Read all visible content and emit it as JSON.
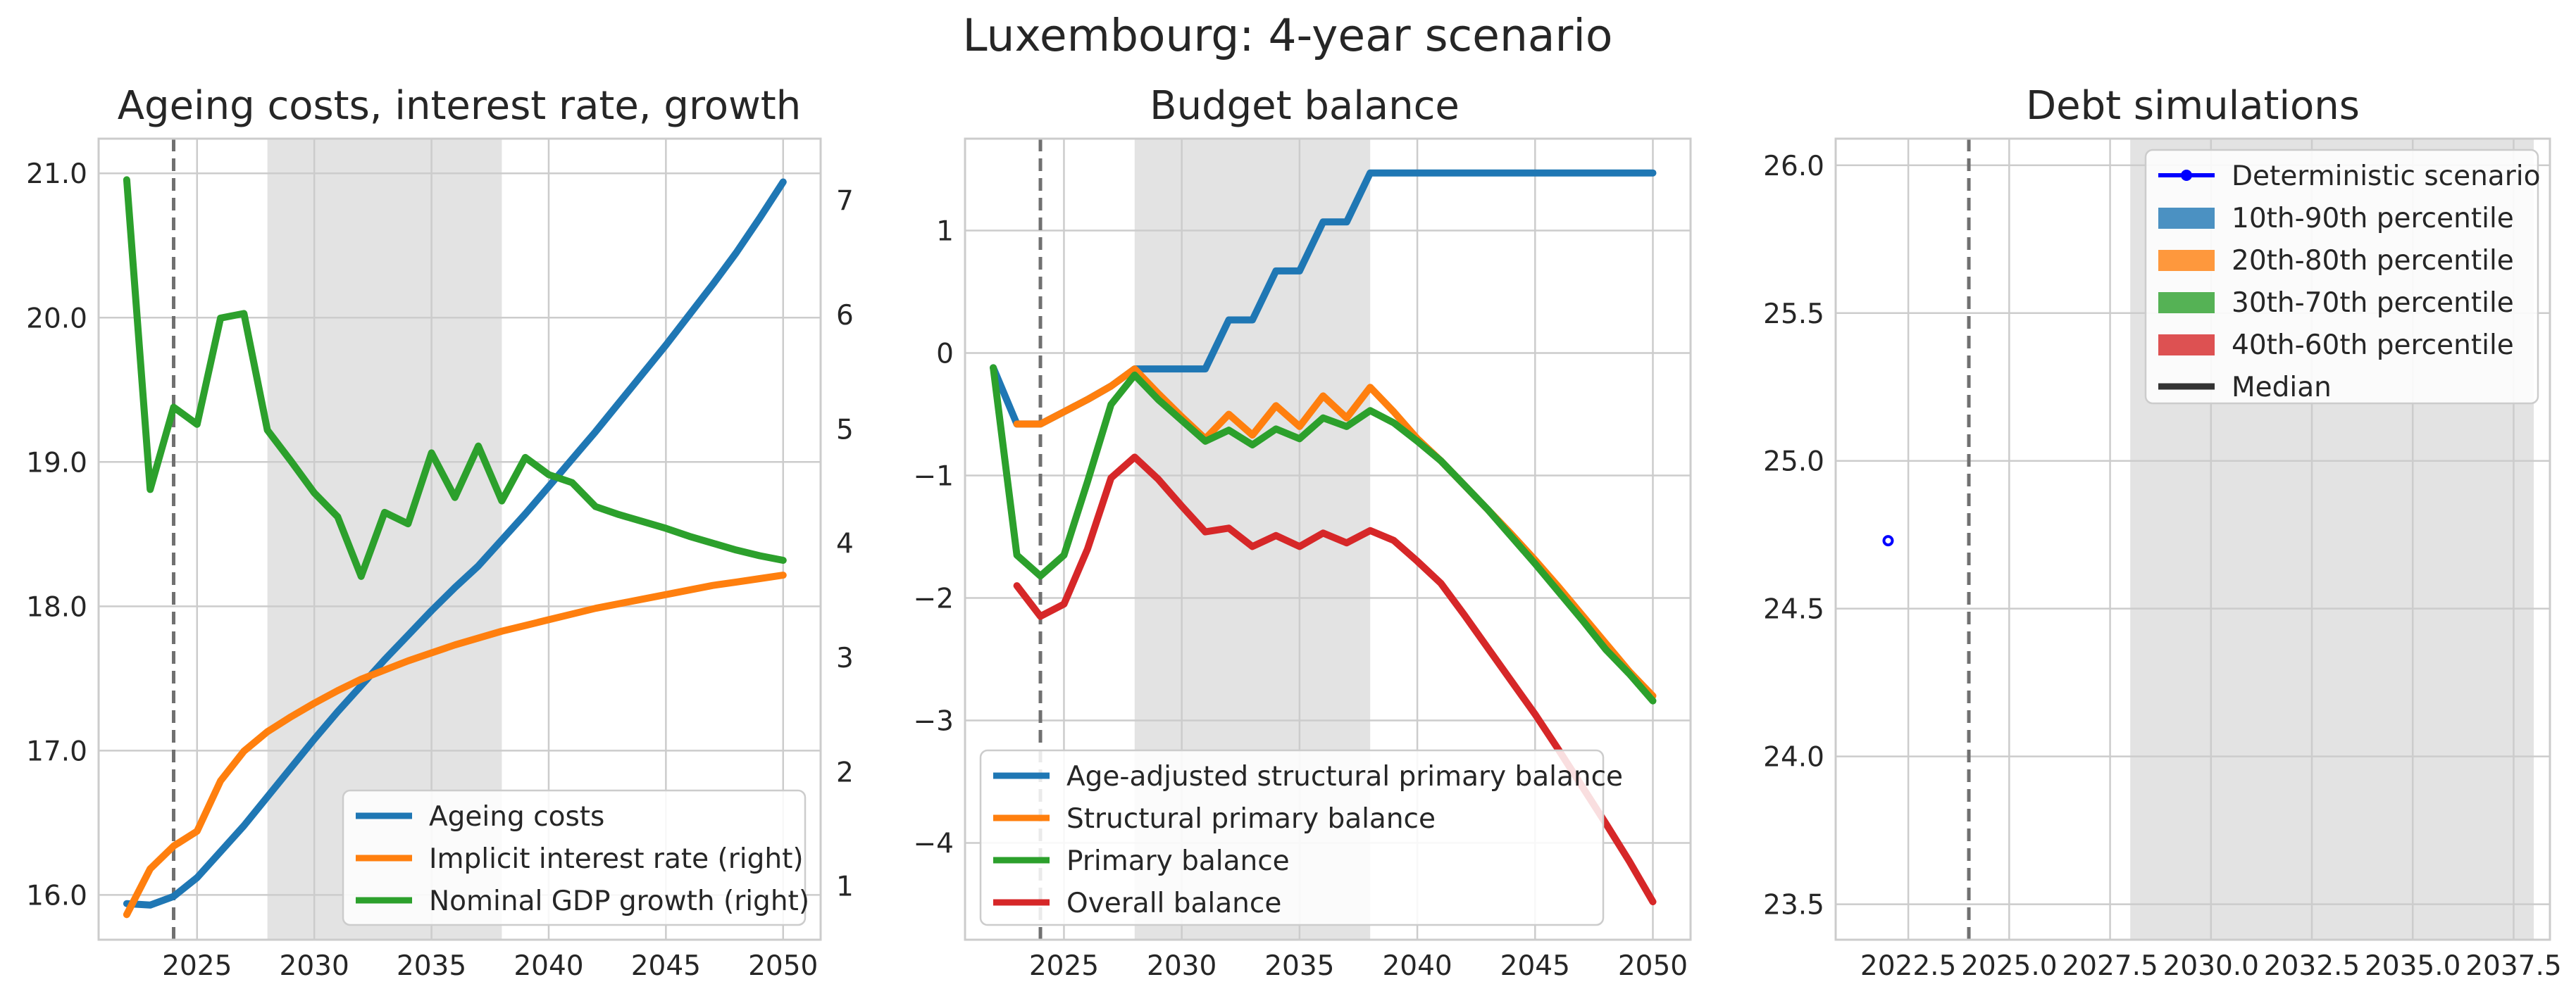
{
  "figure": {
    "suptitle": "Luxembourg: 4-year scenario"
  },
  "colors": {
    "blue": "#1f77b4",
    "orange": "#ff7f0e",
    "green": "#2ca02c",
    "red": "#d62728",
    "shade": "#e3e3e3",
    "vline": "#707070",
    "det": "#0000ff",
    "median": "#333333"
  },
  "chart_data": [
    {
      "id": "ageing",
      "type": "line",
      "title": "Ageing costs, interest rate, growth",
      "xlim": [
        2020.8,
        2051.6
      ],
      "ylim": [
        15.69,
        21.24
      ],
      "y2lim": [
        0.53,
        7.54
      ],
      "xticks": [
        2025,
        2030,
        2035,
        2040,
        2045,
        2050
      ],
      "xtick_labels": [
        "2025",
        "2030",
        "2035",
        "2040",
        "2045",
        "2050"
      ],
      "yticks": [
        16.0,
        17.0,
        18.0,
        19.0,
        20.0,
        21.0
      ],
      "ytick_labels": [
        "16.0",
        "17.0",
        "18.0",
        "19.0",
        "20.0",
        "21.0"
      ],
      "y2ticks": [
        1,
        2,
        3,
        4,
        5,
        6,
        7
      ],
      "y2tick_labels": [
        "1",
        "2",
        "3",
        "4",
        "5",
        "6",
        "7"
      ],
      "shaded_span": [
        2028,
        2038
      ],
      "vline": 2024,
      "legend_position": "lower right",
      "series": [
        {
          "name": "Ageing costs",
          "color": "#1f77b4",
          "axis": "left",
          "x": [
            2022,
            2023,
            2024,
            2025,
            2026,
            2027,
            2028,
            2029,
            2030,
            2031,
            2032,
            2033,
            2034,
            2035,
            2036,
            2037,
            2038,
            2039,
            2040,
            2041,
            2042,
            2043,
            2044,
            2045,
            2046,
            2047,
            2048,
            2049,
            2050
          ],
          "values": [
            15.94,
            15.93,
            15.99,
            16.12,
            16.3,
            16.48,
            16.68,
            16.88,
            17.08,
            17.27,
            17.45,
            17.63,
            17.8,
            17.97,
            18.13,
            18.28,
            18.46,
            18.64,
            18.83,
            19.02,
            19.21,
            19.41,
            19.61,
            19.81,
            20.02,
            20.23,
            20.45,
            20.69,
            20.94
          ]
        },
        {
          "name": "Implicit interest rate (right)",
          "color": "#ff7f0e",
          "axis": "right",
          "x": [
            2022,
            2023,
            2024,
            2025,
            2026,
            2027,
            2028,
            2029,
            2030,
            2031,
            2032,
            2033,
            2034,
            2035,
            2036,
            2037,
            2038,
            2039,
            2040,
            2041,
            2042,
            2043,
            2044,
            2045,
            2046,
            2047,
            2048,
            2049,
            2050
          ],
          "values": [
            0.75,
            1.15,
            1.35,
            1.48,
            1.92,
            2.18,
            2.35,
            2.48,
            2.6,
            2.71,
            2.81,
            2.89,
            2.97,
            3.04,
            3.11,
            3.17,
            3.23,
            3.28,
            3.33,
            3.38,
            3.43,
            3.47,
            3.51,
            3.55,
            3.59,
            3.63,
            3.66,
            3.69,
            3.72
          ]
        },
        {
          "name": "Nominal GDP growth (right)",
          "color": "#2ca02c",
          "axis": "right",
          "x": [
            2022,
            2023,
            2024,
            2025,
            2026,
            2027,
            2028,
            2029,
            2030,
            2031,
            2032,
            2033,
            2034,
            2035,
            2036,
            2037,
            2038,
            2039,
            2040,
            2041,
            2042,
            2043,
            2044,
            2045,
            2046,
            2047,
            2048,
            2049,
            2050
          ],
          "values": [
            7.18,
            4.47,
            5.19,
            5.04,
            5.97,
            6.01,
            4.99,
            4.72,
            4.44,
            4.23,
            3.71,
            4.27,
            4.17,
            4.79,
            4.4,
            4.85,
            4.37,
            4.75,
            4.6,
            4.53,
            4.32,
            4.25,
            4.19,
            4.13,
            4.06,
            4.0,
            3.94,
            3.89,
            3.85
          ]
        }
      ]
    },
    {
      "id": "budget",
      "type": "line",
      "title": "Budget balance",
      "xlim": [
        2020.8,
        2051.6
      ],
      "ylim": [
        -4.79,
        1.75
      ],
      "xticks": [
        2025,
        2030,
        2035,
        2040,
        2045,
        2050
      ],
      "xtick_labels": [
        "2025",
        "2030",
        "2035",
        "2040",
        "2045",
        "2050"
      ],
      "yticks": [
        -4,
        -3,
        -2,
        -1,
        0,
        1
      ],
      "ytick_labels": [
        "−4",
        "−3",
        "−2",
        "−1",
        "0",
        "1"
      ],
      "shaded_span": [
        2028,
        2038
      ],
      "vline": 2024,
      "legend_position": "lower left",
      "series": [
        {
          "name": "Age-adjusted structural primary balance",
          "color": "#1f77b4",
          "x": [
            2022,
            2023,
            2024,
            2025,
            2026,
            2027,
            2028,
            2029,
            2030,
            2031,
            2032,
            2033,
            2034,
            2035,
            2036,
            2037,
            2038,
            2039,
            2040,
            2041,
            2042,
            2043,
            2044,
            2045,
            2046,
            2047,
            2048,
            2049,
            2050
          ],
          "values": [
            -0.12,
            -0.58,
            -0.58,
            -0.48,
            -0.38,
            -0.27,
            -0.13,
            -0.13,
            -0.13,
            -0.13,
            0.27,
            0.27,
            0.67,
            0.67,
            1.07,
            1.07,
            1.47,
            1.47,
            1.47,
            1.47,
            1.47,
            1.47,
            1.47,
            1.47,
            1.47,
            1.47,
            1.47,
            1.47,
            1.47
          ]
        },
        {
          "name": "Structural primary balance",
          "color": "#ff7f0e",
          "x": [
            2023,
            2024,
            2025,
            2026,
            2027,
            2028,
            2029,
            2030,
            2031,
            2032,
            2033,
            2034,
            2035,
            2036,
            2037,
            2038,
            2039,
            2040,
            2041,
            2042,
            2043,
            2044,
            2045,
            2046,
            2047,
            2048,
            2049,
            2050
          ],
          "values": [
            -0.58,
            -0.58,
            -0.48,
            -0.38,
            -0.27,
            -0.13,
            -0.33,
            -0.52,
            -0.7,
            -0.5,
            -0.67,
            -0.43,
            -0.6,
            -0.35,
            -0.53,
            -0.28,
            -0.48,
            -0.7,
            -0.88,
            -1.08,
            -1.28,
            -1.48,
            -1.69,
            -1.91,
            -2.14,
            -2.37,
            -2.6,
            -2.8
          ]
        },
        {
          "name": "Primary balance",
          "color": "#2ca02c",
          "x": [
            2022,
            2023,
            2024,
            2025,
            2026,
            2027,
            2028,
            2029,
            2030,
            2031,
            2032,
            2033,
            2034,
            2035,
            2036,
            2037,
            2038,
            2039,
            2040,
            2041,
            2042,
            2043,
            2044,
            2045,
            2046,
            2047,
            2048,
            2049,
            2050
          ],
          "values": [
            -0.12,
            -1.65,
            -1.82,
            -1.65,
            -1.05,
            -0.42,
            -0.18,
            -0.38,
            -0.55,
            -0.72,
            -0.63,
            -0.75,
            -0.62,
            -0.7,
            -0.53,
            -0.6,
            -0.47,
            -0.57,
            -0.72,
            -0.88,
            -1.08,
            -1.28,
            -1.5,
            -1.72,
            -1.95,
            -2.18,
            -2.42,
            -2.62,
            -2.84
          ]
        },
        {
          "name": "Overall balance",
          "color": "#d62728",
          "x": [
            2023,
            2024,
            2025,
            2026,
            2027,
            2028,
            2029,
            2030,
            2031,
            2032,
            2033,
            2034,
            2035,
            2036,
            2037,
            2038,
            2039,
            2040,
            2041,
            2042,
            2043,
            2044,
            2045,
            2046,
            2047,
            2048,
            2049,
            2050
          ],
          "values": [
            -1.9,
            -2.15,
            -2.05,
            -1.6,
            -1.02,
            -0.85,
            -1.03,
            -1.25,
            -1.46,
            -1.43,
            -1.58,
            -1.49,
            -1.58,
            -1.47,
            -1.55,
            -1.45,
            -1.53,
            -1.7,
            -1.88,
            -2.14,
            -2.41,
            -2.68,
            -2.95,
            -3.24,
            -3.54,
            -3.84,
            -4.15,
            -4.48
          ]
        }
      ]
    },
    {
      "id": "debt",
      "type": "line",
      "title": "Debt simulations",
      "xlim": [
        2020.7,
        2038.4
      ],
      "ylim": [
        23.38,
        26.09
      ],
      "xticks": [
        2022.5,
        2025.0,
        2027.5,
        2030.0,
        2032.5,
        2035.0,
        2037.5
      ],
      "xtick_labels": [
        "2022.5",
        "2025.0",
        "2027.5",
        "2030.0",
        "2032.5",
        "2035.0",
        "2037.5"
      ],
      "yticks": [
        23.5,
        24.0,
        24.5,
        25.0,
        25.5,
        26.0
      ],
      "ytick_labels": [
        "23.5",
        "24.0",
        "24.5",
        "25.0",
        "25.5",
        "26.0"
      ],
      "shaded_span": [
        2028,
        2038
      ],
      "vline": 2024,
      "legend_position": "upper right",
      "series": [
        {
          "name": "Deterministic scenario",
          "color": "#0000ff",
          "x": [
            2022
          ],
          "values": [
            24.73
          ]
        }
      ],
      "legend": [
        {
          "label": "Deterministic scenario",
          "kind": "line-marker",
          "color": "#0000ff"
        },
        {
          "label": "10th-90th percentile",
          "kind": "patch",
          "color": "#1f77b4"
        },
        {
          "label": "20th-80th percentile",
          "kind": "patch",
          "color": "#ff7f0e"
        },
        {
          "label": "30th-70th percentile",
          "kind": "patch",
          "color": "#2ca02c"
        },
        {
          "label": "40th-60th percentile",
          "kind": "patch",
          "color": "#d62728"
        },
        {
          "label": "Median",
          "kind": "line",
          "color": "#333333"
        }
      ]
    }
  ]
}
